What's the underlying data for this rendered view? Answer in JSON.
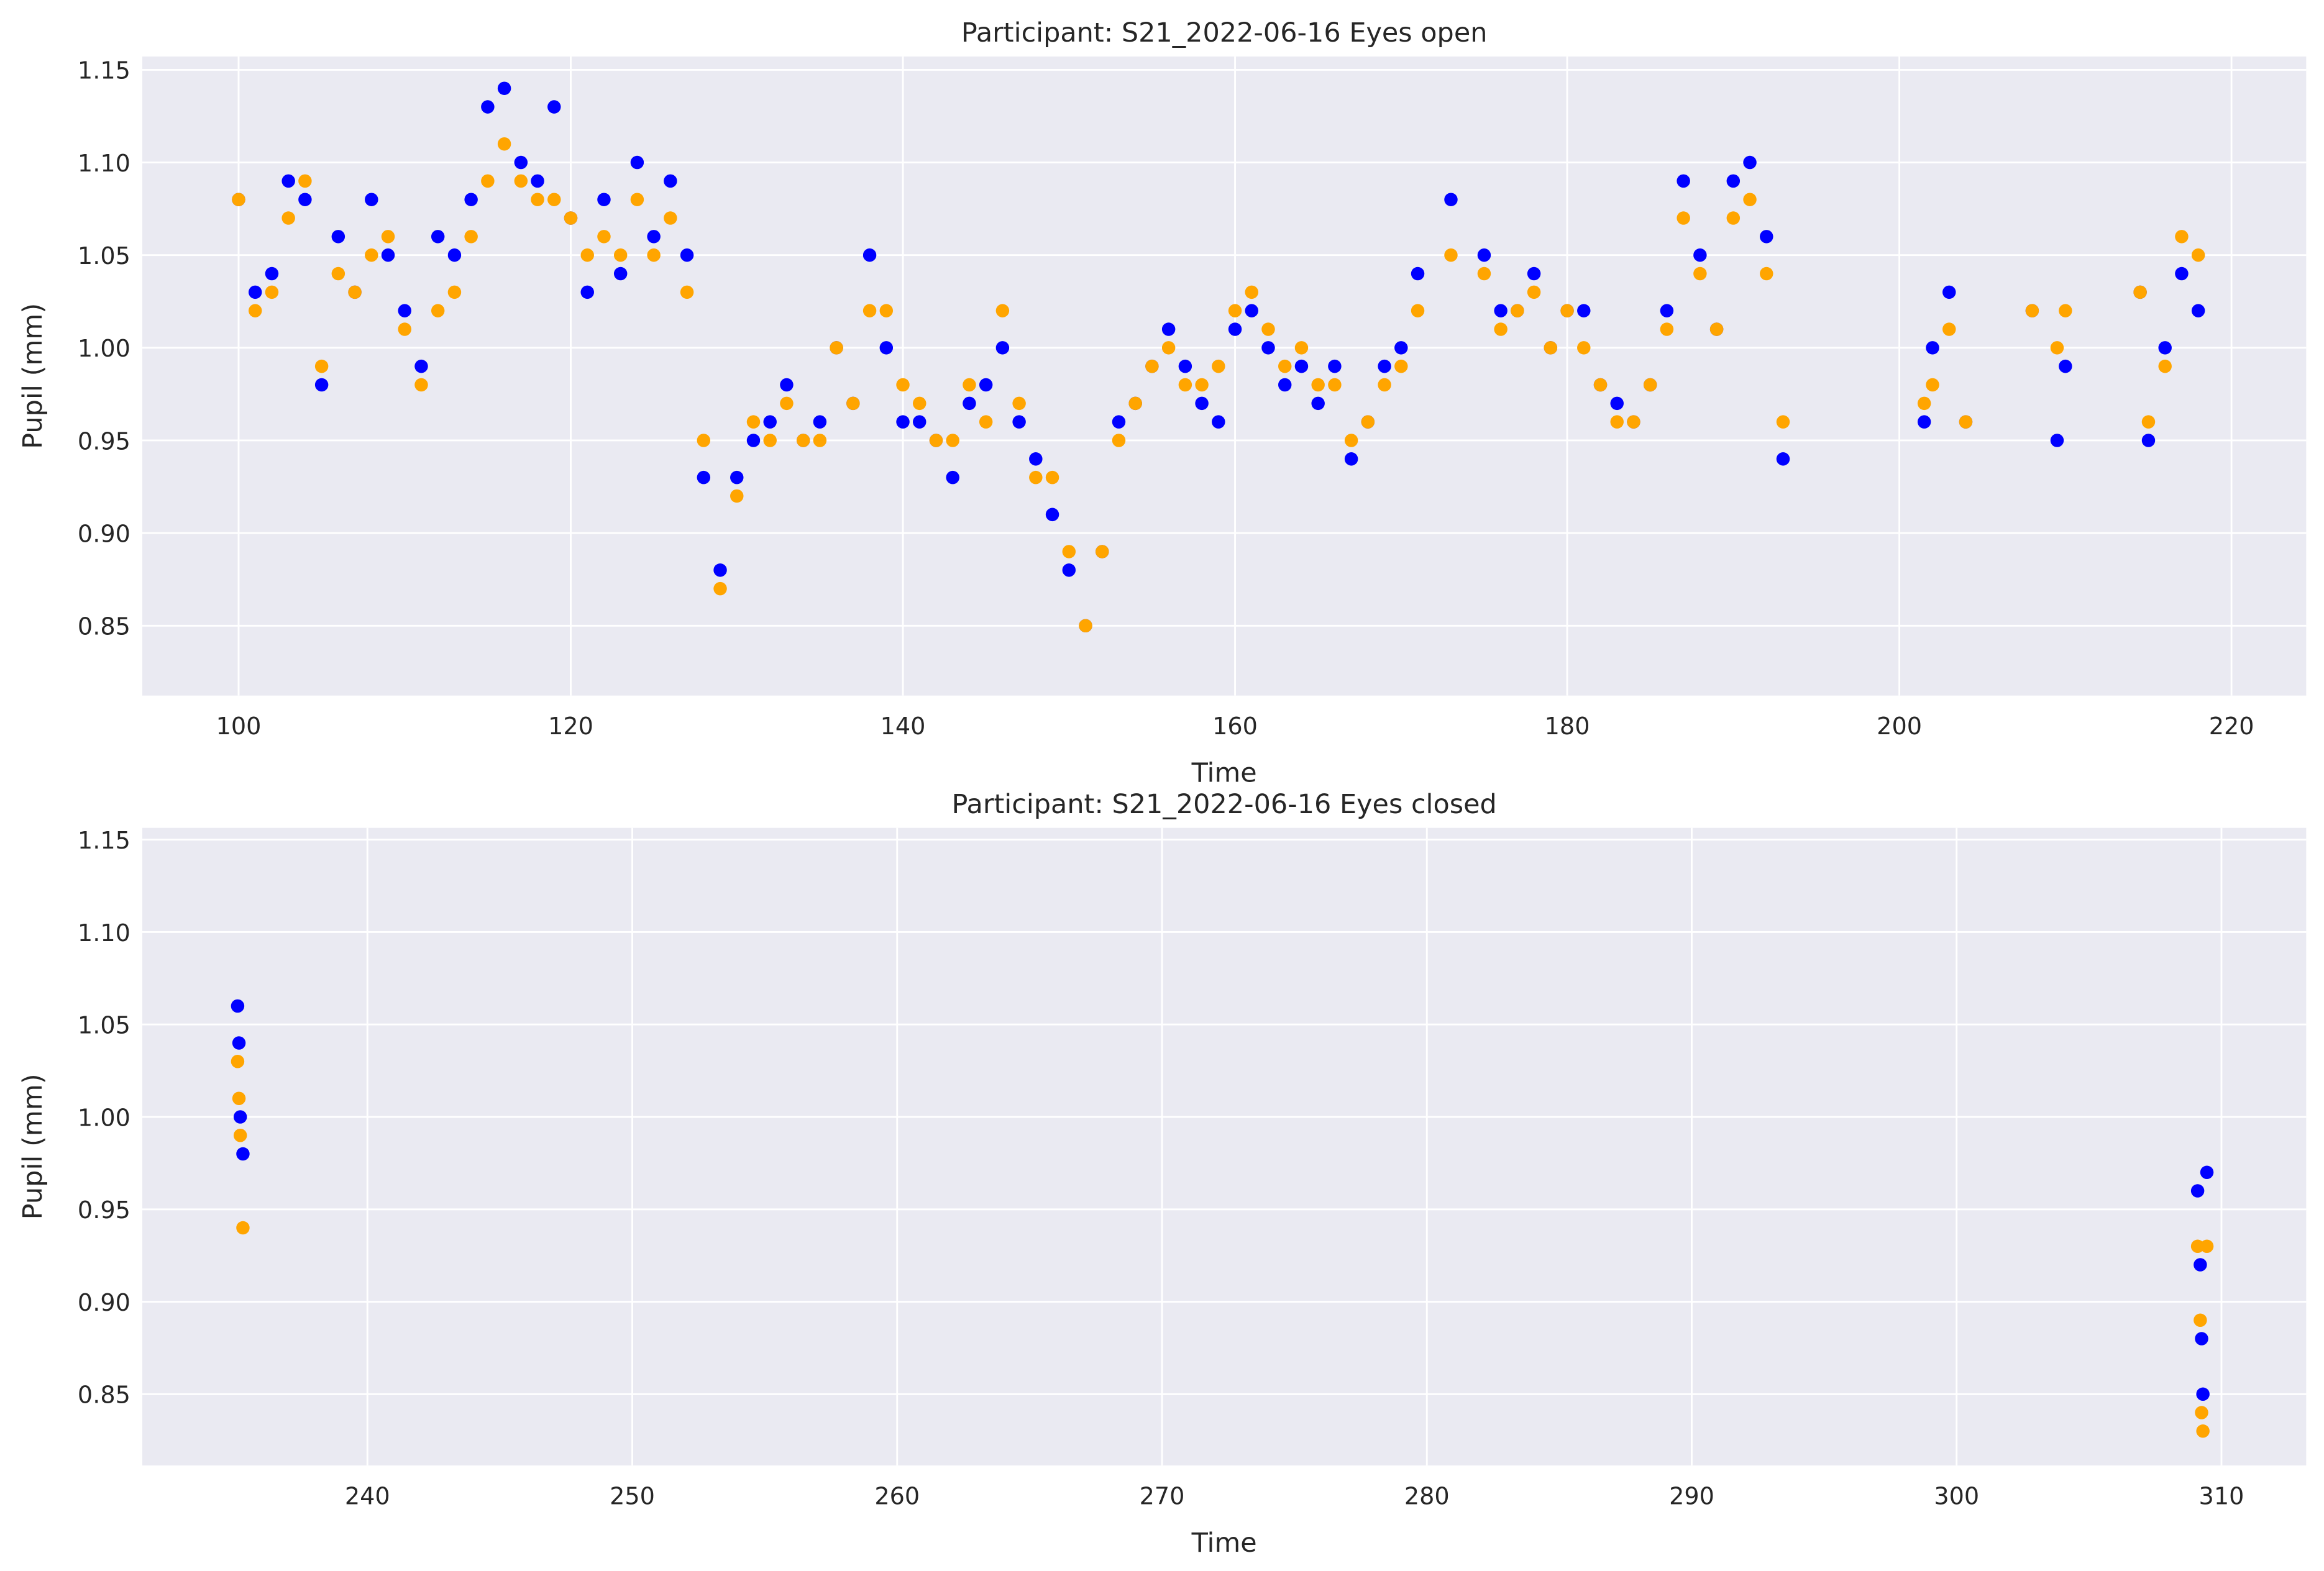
{
  "chart_data": [
    {
      "type": "scatter",
      "title": "Participant: S21_2022-06-16 Eyes open",
      "x_label": "Time",
      "y_label": "Pupil (mm)",
      "x": [
        100,
        101,
        102,
        103,
        104,
        105,
        106,
        107,
        108,
        109,
        110,
        111,
        112,
        113,
        114,
        115,
        116,
        117,
        118,
        119,
        120,
        121,
        122,
        123,
        124,
        125,
        126,
        127,
        128,
        129,
        130,
        131,
        132,
        133,
        134,
        135,
        136,
        137,
        138,
        139,
        140,
        141,
        142,
        143,
        144,
        145,
        146,
        147,
        148,
        149,
        150,
        151,
        152,
        153,
        154,
        155,
        156,
        157,
        158,
        159,
        160,
        161,
        162,
        163,
        164,
        165,
        166,
        167,
        168,
        169,
        170,
        171,
        173,
        175,
        176,
        177,
        178,
        179,
        180,
        181,
        182,
        183,
        184,
        185,
        186,
        187,
        188,
        189,
        190,
        191,
        192,
        193,
        201.5,
        202,
        203,
        204,
        208,
        209.5,
        210,
        214.5,
        215,
        216,
        217,
        218
      ],
      "series": [
        {
          "color": "#0000ff",
          "values": [
            1.08,
            1.03,
            1.04,
            1.09,
            1.08,
            0.98,
            1.06,
            1.03,
            1.08,
            1.05,
            1.02,
            0.99,
            1.06,
            1.05,
            1.08,
            1.13,
            1.14,
            1.1,
            1.09,
            1.13,
            1.07,
            1.03,
            1.08,
            1.04,
            1.1,
            1.06,
            1.09,
            1.05,
            0.93,
            0.88,
            0.93,
            0.95,
            0.96,
            0.98,
            0.95,
            0.96,
            1.0,
            0.97,
            1.05,
            1.0,
            0.96,
            0.96,
            0.95,
            0.93,
            0.97,
            0.98,
            1.0,
            0.96,
            0.94,
            0.91,
            0.88,
            0.85,
            0.89,
            0.96,
            0.97,
            0.99,
            1.01,
            0.99,
            0.97,
            0.96,
            1.01,
            1.02,
            1.0,
            0.98,
            0.99,
            0.97,
            0.99,
            0.94,
            0.96,
            0.99,
            1.0,
            1.04,
            1.08,
            1.05,
            1.02,
            1.02,
            1.04,
            1.0,
            1.02,
            1.02,
            0.98,
            0.97,
            0.96,
            0.98,
            1.02,
            1.09,
            1.05,
            1.01,
            1.09,
            1.1,
            1.06,
            0.94,
            0.96,
            1.0,
            1.03,
            0.96,
            1.02,
            0.95,
            0.99,
            1.03,
            0.95,
            1.0,
            1.04,
            1.02
          ]
        },
        {
          "color": "#ffa500",
          "values": [
            1.08,
            1.02,
            1.03,
            1.07,
            1.09,
            0.99,
            1.04,
            1.03,
            1.05,
            1.06,
            1.01,
            0.98,
            1.02,
            1.03,
            1.06,
            1.09,
            1.11,
            1.09,
            1.08,
            1.08,
            1.07,
            1.05,
            1.06,
            1.05,
            1.08,
            1.05,
            1.07,
            1.03,
            0.95,
            0.87,
            0.92,
            0.96,
            0.95,
            0.97,
            0.95,
            0.95,
            1.0,
            0.97,
            1.02,
            1.02,
            0.98,
            0.97,
            0.95,
            0.95,
            0.98,
            0.96,
            1.02,
            0.97,
            0.93,
            0.93,
            0.89,
            0.85,
            0.89,
            0.95,
            0.97,
            0.99,
            1.0,
            0.98,
            0.98,
            0.99,
            1.02,
            1.03,
            1.01,
            0.99,
            1.0,
            0.98,
            0.98,
            0.95,
            0.96,
            0.98,
            0.99,
            1.02,
            1.05,
            1.04,
            1.01,
            1.02,
            1.03,
            1.0,
            1.02,
            1.0,
            0.98,
            0.96,
            0.96,
            0.98,
            1.01,
            1.07,
            1.04,
            1.01,
            1.07,
            1.08,
            1.04,
            0.96,
            0.97,
            0.98,
            1.01,
            0.96,
            1.02,
            1.0,
            1.02,
            1.03,
            0.96,
            0.99,
            1.06,
            1.05
          ]
        }
      ],
      "xlim": [
        94.2,
        224.5
      ],
      "ylim": [
        0.8123,
        1.1572
      ],
      "xticks": [
        100,
        120,
        140,
        160,
        180,
        200,
        220
      ],
      "yticks": [
        {
          "value": 0.85,
          "label": "0.85"
        },
        {
          "value": 0.9,
          "label": "0.90"
        },
        {
          "value": 0.95,
          "label": "0.95"
        },
        {
          "value": 1.0,
          "label": "1.00"
        },
        {
          "value": 1.05,
          "label": "1.05"
        },
        {
          "value": 1.1,
          "label": "1.10"
        },
        {
          "value": 1.15,
          "label": "1.15"
        }
      ],
      "grid": true
    },
    {
      "type": "scatter",
      "title": "Participant: S21_2022-06-16 Eyes closed",
      "x_label": "Time",
      "y_label": "Pupil (mm)",
      "x": [
        235.1,
        235.15,
        235.2,
        235.3,
        309.1,
        309.2,
        309.25,
        309.3,
        309.45
      ],
      "series": [
        {
          "color": "#0000ff",
          "values": [
            1.06,
            1.04,
            1.0,
            0.98,
            0.96,
            0.92,
            0.88,
            0.85,
            0.97
          ]
        },
        {
          "color": "#ffa500",
          "values": [
            1.03,
            1.01,
            0.99,
            0.94,
            0.93,
            0.89,
            0.84,
            0.83,
            0.93
          ]
        }
      ],
      "xlim": [
        231.5,
        313.2
      ],
      "ylim": [
        0.8114,
        1.1564
      ],
      "xticks": [
        240,
        250,
        260,
        270,
        280,
        290,
        300,
        310
      ],
      "yticks": [
        {
          "value": 0.85,
          "label": "0.85"
        },
        {
          "value": 0.9,
          "label": "0.90"
        },
        {
          "value": 0.95,
          "label": "0.95"
        },
        {
          "value": 1.0,
          "label": "1.00"
        },
        {
          "value": 1.05,
          "label": "1.05"
        },
        {
          "value": 1.1,
          "label": "1.10"
        },
        {
          "value": 1.15,
          "label": "1.15"
        }
      ],
      "grid": true
    }
  ]
}
